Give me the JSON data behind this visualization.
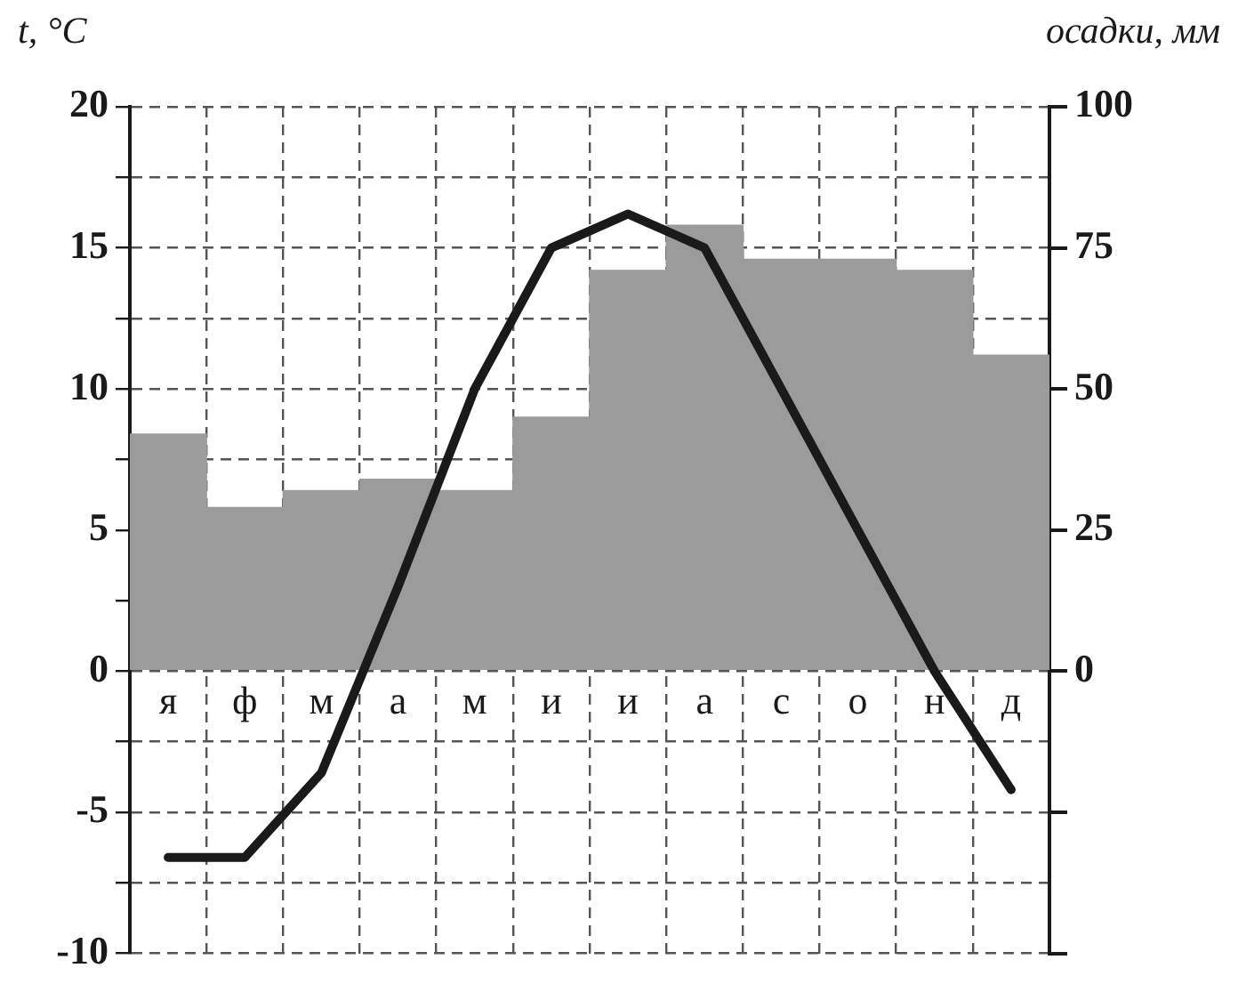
{
  "chart_data": {
    "type": "bar",
    "ylabel": "t, °C",
    "y2label": "осадки, мм",
    "categories": [
      "я",
      "ф",
      "м",
      "а",
      "м",
      "и",
      "и",
      "а",
      "с",
      "о",
      "н",
      "д"
    ],
    "series": [
      {
        "axis": "y2",
        "color": "#9b9b9b",
        "values": [
          42,
          29,
          32,
          34,
          32,
          45,
          71,
          79,
          73,
          73,
          71,
          56
        ]
      },
      {
        "type": "line",
        "color": "#1a1a1a",
        "values": [
          -6.6,
          -6.6,
          -3.6,
          3,
          10,
          15,
          16.2,
          15,
          10,
          5,
          0,
          -4.2
        ]
      }
    ],
    "ylim": [
      -10,
      20
    ],
    "yticks": [
      -10,
      {
        "value": -7.5,
        "label": null
      },
      -5,
      {
        "value": -2.5,
        "label": null
      },
      0,
      {
        "value": 2.5,
        "label": null
      },
      5,
      {
        "value": 7.5,
        "label": null
      },
      10,
      {
        "value": 12.5,
        "label": null
      },
      15,
      {
        "value": 17.5,
        "label": null
      },
      20
    ],
    "y2lim": [
      -50,
      100
    ],
    "y2ticks": [
      {
        "value": -50,
        "label": null
      },
      {
        "value": -25,
        "label": null
      },
      0,
      25,
      50,
      75,
      100
    ],
    "grid": true,
    "marker": "none"
  }
}
